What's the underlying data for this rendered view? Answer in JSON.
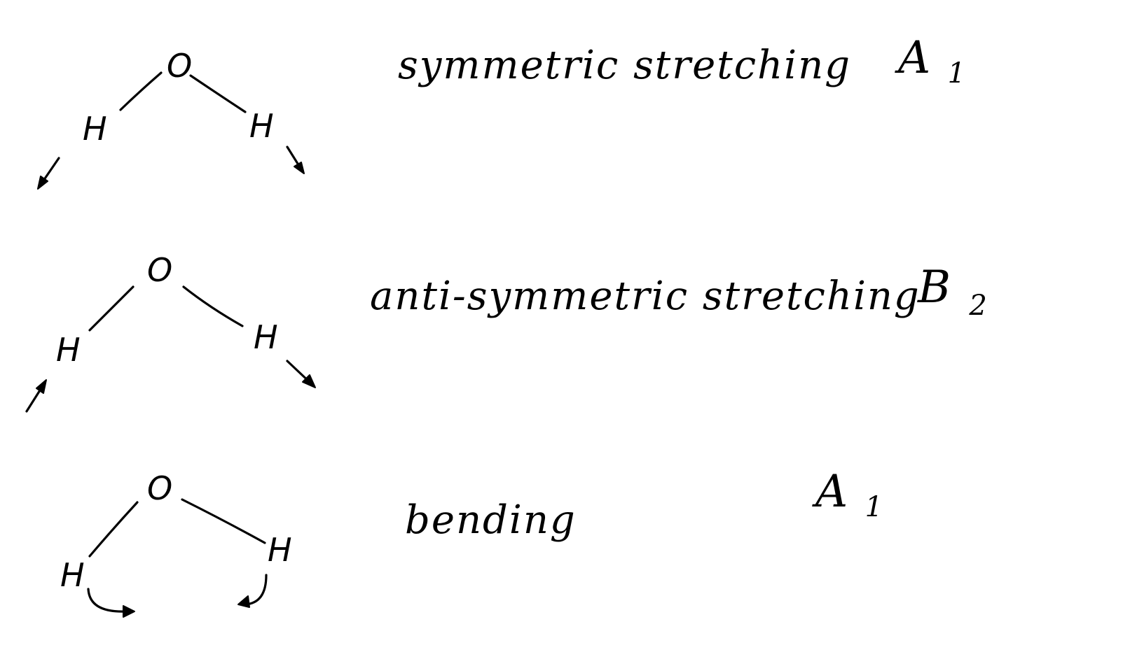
{
  "atoms": {
    "oxygen": "O",
    "hydrogen": "H"
  },
  "modes": [
    {
      "name": "symmetric stretching",
      "symmetry": "A",
      "subscript": "1"
    },
    {
      "name": "anti-symmetric stretching",
      "symmetry": "B",
      "subscript": "2"
    },
    {
      "name": "bending",
      "symmetry": "A",
      "subscript": "1"
    }
  ]
}
